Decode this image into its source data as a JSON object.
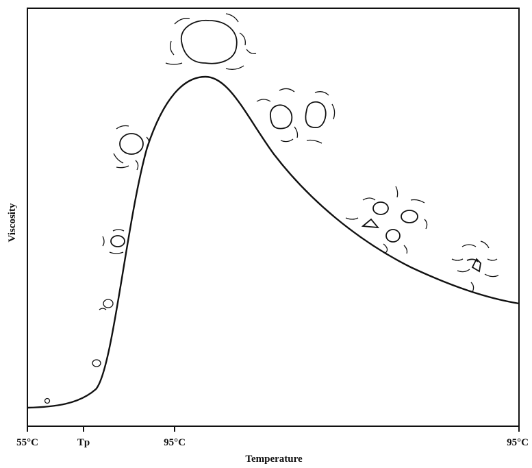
{
  "y_axis": {
    "label": "Viscosity"
  },
  "x_axis": {
    "label": "Temperature",
    "ticks": [
      "55°C",
      "Tp",
      "95°C",
      "95°C"
    ]
  }
}
